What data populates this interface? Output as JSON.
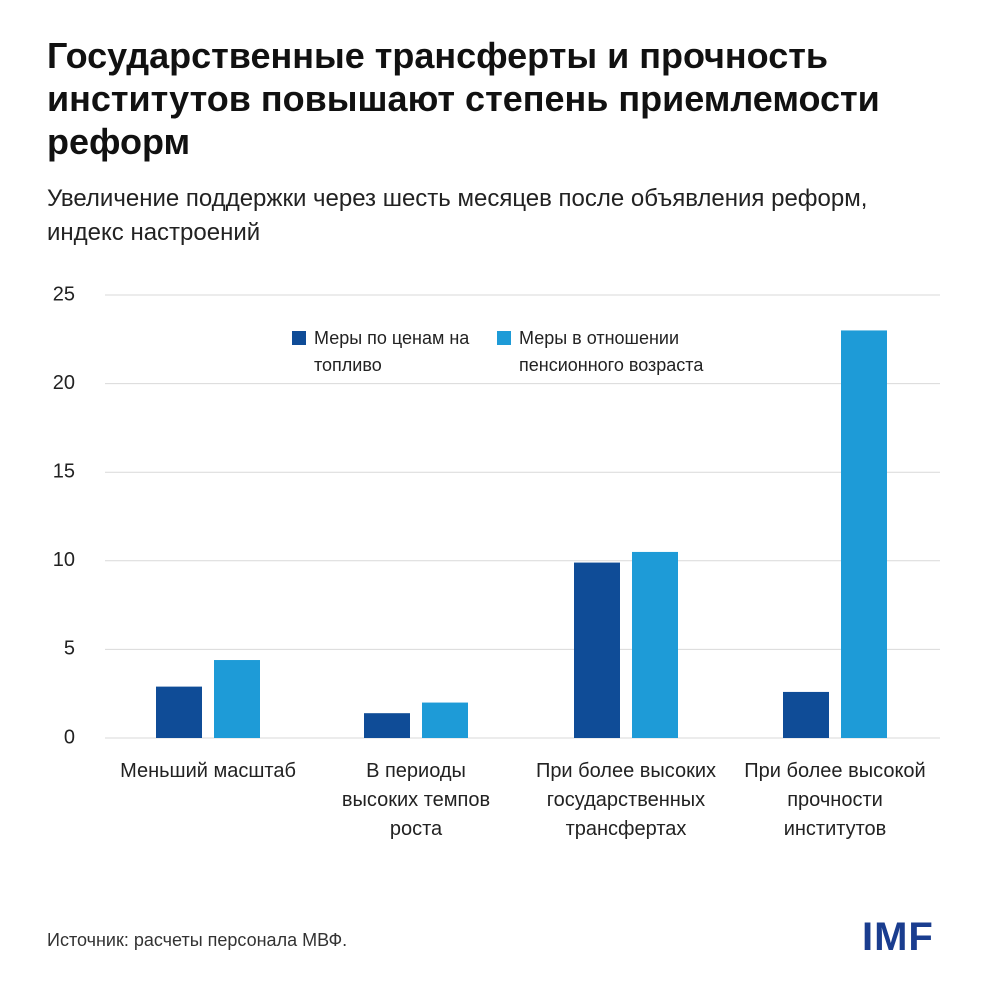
{
  "chart_data": {
    "type": "bar",
    "title": "Государственные трансферты и прочность институтов повышают степень приемлемости реформ",
    "subtitle": "Увеличение поддержки через шесть месяцев после объявления реформ, индекс настроений",
    "categories": [
      "Меньший масштаб",
      "В периоды высоких темпов роста",
      "При более высоких государственных трансфертах",
      "При более высокой прочности институтов"
    ],
    "series": [
      {
        "name": "Меры по ценам на топливо",
        "color": "#0f4c97",
        "values": [
          2.9,
          1.4,
          9.9,
          2.6
        ]
      },
      {
        "name": "Меры в отношении пенсионного возраста",
        "color": "#1e9bd7",
        "values": [
          4.4,
          2.0,
          10.5,
          23.0
        ]
      }
    ],
    "ylim": [
      0,
      25
    ],
    "yticks": [
      0,
      5,
      10,
      15,
      20,
      25
    ],
    "grid": true,
    "source": "Источник: расчеты персонала МВФ.",
    "logo": "IMF"
  }
}
